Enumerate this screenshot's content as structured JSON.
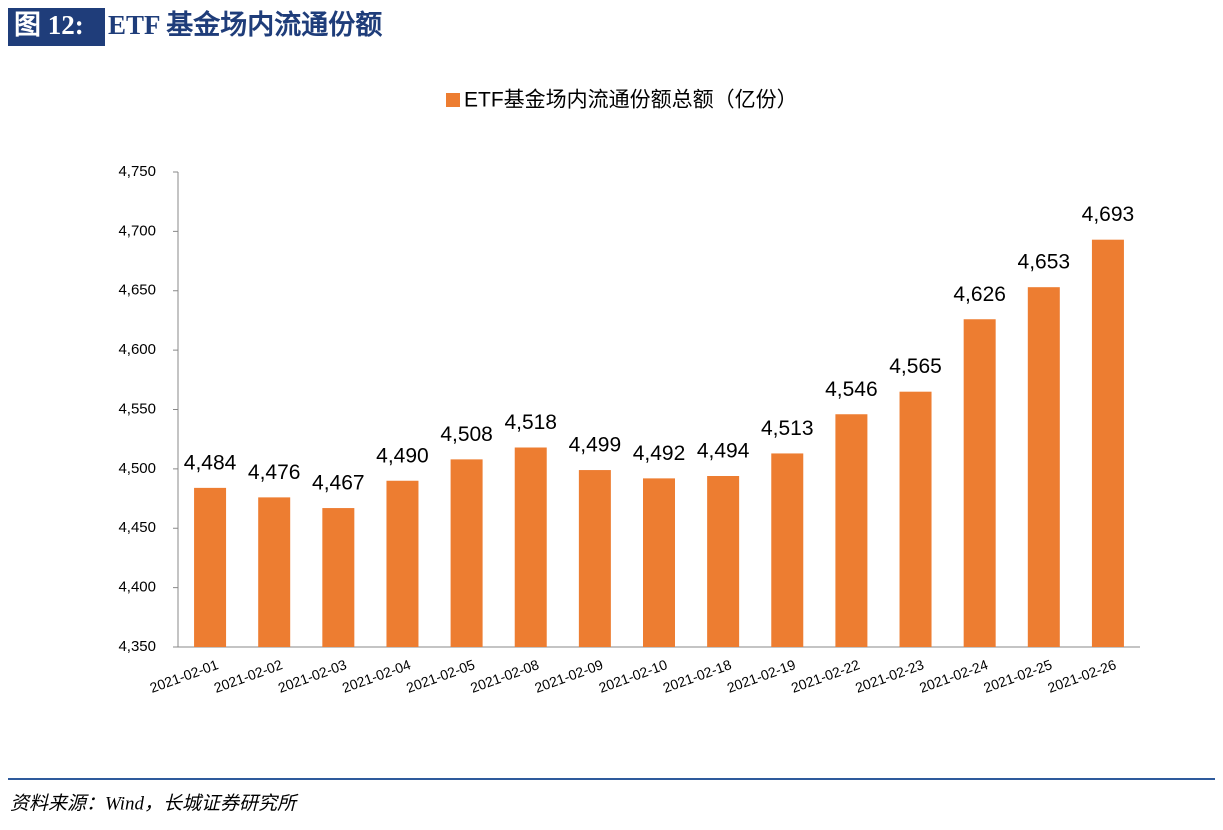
{
  "header": {
    "label": "图 12:",
    "title": "ETF 基金场内流通份额"
  },
  "source": "资料来源：Wind，长城证券研究所",
  "chart_data": {
    "type": "bar",
    "categories": [
      "2021-02-01",
      "2021-02-02",
      "2021-02-03",
      "2021-02-04",
      "2021-02-05",
      "2021-02-08",
      "2021-02-09",
      "2021-02-10",
      "2021-02-18",
      "2021-02-19",
      "2021-02-22",
      "2021-02-23",
      "2021-02-24",
      "2021-02-25",
      "2021-02-26"
    ],
    "series": [
      {
        "name": "ETF基金场内流通份额总额（亿份）",
        "color": "#ED7D31",
        "values": [
          4484,
          4476,
          4467,
          4490,
          4508,
          4518,
          4499,
          4492,
          4494,
          4513,
          4546,
          4565,
          4626,
          4653,
          4693
        ],
        "value_labels": [
          "4,484",
          "4,476",
          "4,467",
          "4,490",
          "4,508",
          "4,518",
          "4,499",
          "4,492",
          "4,494",
          "4,513",
          "4,546",
          "4,565",
          "4,626",
          "4,653",
          "4,693"
        ]
      }
    ],
    "ylim": [
      4350,
      4750
    ],
    "yticks": [
      {
        "value": 4350,
        "label": "4,350"
      },
      {
        "value": 4400,
        "label": "4,400"
      },
      {
        "value": 4450,
        "label": "4,450"
      },
      {
        "value": 4500,
        "label": "4,500"
      },
      {
        "value": 4550,
        "label": "4,550"
      },
      {
        "value": 4600,
        "label": "4,600"
      },
      {
        "value": 4650,
        "label": "4,650"
      },
      {
        "value": 4700,
        "label": "4,700"
      },
      {
        "value": 4750,
        "label": "4,750"
      }
    ],
    "legend": "top"
  }
}
